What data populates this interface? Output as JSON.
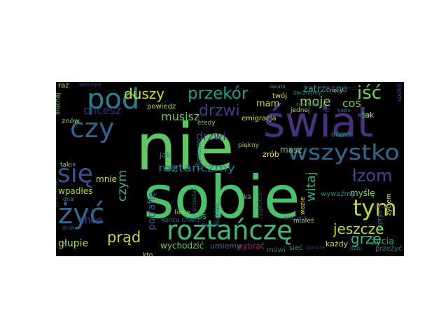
{
  "word_cloud": {
    "background": "#000000",
    "words": [
      {
        "text": "nie",
        "color": "#5ec962"
      },
      {
        "text": "sobie",
        "color": "#4ac16d"
      },
      {
        "text": "świat",
        "color": "#46327e"
      },
      {
        "text": "czy",
        "color": "#33638d"
      },
      {
        "text": "pod",
        "color": "#26828e"
      },
      {
        "text": "się",
        "color": "#3b528b"
      },
      {
        "text": "żyć",
        "color": "#31688e"
      },
      {
        "text": "roztańczę",
        "color": "#3cbc75"
      },
      {
        "text": "wszystko",
        "color": "#31688e"
      },
      {
        "text": "tym",
        "color": "#b5de2b"
      },
      {
        "text": "przekór",
        "color": "#1f9e89"
      },
      {
        "text": "duszy",
        "color": "#c8e020"
      },
      {
        "text": "drzwi",
        "color": "#433e85"
      },
      {
        "text": "moje",
        "color": "#90d743"
      },
      {
        "text": "iść",
        "color": "#7ad151"
      },
      {
        "text": "łzom",
        "color": "#3e4989"
      },
      {
        "text": "jeszcze",
        "color": "#b8de29"
      },
      {
        "text": "prąd",
        "color": "#bddf26"
      },
      {
        "text": "czym",
        "color": "#35b779"
      },
      {
        "text": "roztańczmy",
        "color": "#2a788e"
      },
      {
        "text": "witaj",
        "color": "#2db27d"
      },
      {
        "text": "grze",
        "color": "#35b779"
      },
      {
        "text": "chcesz",
        "color": "#482878"
      },
      {
        "text": "musisz",
        "color": "#5ec962"
      },
      {
        "text": "potrafię",
        "color": "#3b528b"
      },
      {
        "text": "głupie",
        "color": "#a2da37"
      },
      {
        "text": "zatrzasne",
        "color": "#1f9e89"
      },
      {
        "text": "lubię",
        "color": "#440154"
      },
      {
        "text": "coś",
        "color": "#6ece58"
      },
      {
        "text": "mam",
        "color": "#c2df23"
      },
      {
        "text": "chce",
        "color": "#3f4788"
      },
      {
        "text": "wpadłeś",
        "color": "#a5db36"
      },
      {
        "text": "mnie",
        "color": "#d0e11c"
      },
      {
        "text": "wychodzić",
        "color": "#6ece58"
      },
      {
        "text": "umiemy",
        "color": "#2e6e8e"
      },
      {
        "text": "wybrać",
        "color": "#ad1d72"
      },
      {
        "text": "mówi",
        "color": "#2c728e"
      },
      {
        "text": "sieć",
        "color": "#218f8d"
      },
      {
        "text": "każdy",
        "color": "#b2dd2d"
      },
      {
        "text": "życia",
        "color": "#22a884"
      },
      {
        "text": "przeżyć",
        "color": "#25858e"
      },
      {
        "text": "myślę",
        "color": "#8bd646"
      },
      {
        "text": "wywaźmy",
        "color": "#238a8d"
      },
      {
        "text": "zrób",
        "color": "#fde725"
      },
      {
        "text": "masz",
        "color": "#6ccd5a"
      },
      {
        "text": "twój",
        "color": "#d8e219"
      },
      {
        "text": "tak",
        "color": "#75d054"
      },
      {
        "text": "znów",
        "color": "#8fd744"
      },
      {
        "text": "raz",
        "color": "#c0df25"
      },
      {
        "text": "powiedz",
        "color": "#a8db34"
      },
      {
        "text": "los",
        "color": "#2fb47c"
      },
      {
        "text": "jak",
        "color": "#2d708e"
      },
      {
        "text": "sam",
        "color": "#2a778e"
      },
      {
        "text": "taki",
        "color": "#addc30"
      },
      {
        "text": "emigracja",
        "color": "#d2e21b"
      },
      {
        "text": "jednej",
        "color": "#b0dd2f"
      },
      {
        "text": "zacznijmy",
        "color": "#1f948c"
      },
      {
        "text": "obchodzi",
        "color": "#2c738e"
      },
      {
        "text": "kto",
        "color": "#c5e021"
      },
      {
        "text": "koncu chwili",
        "color": "#2e6f8e"
      },
      {
        "text": "rozkład",
        "color": "#2e6e8e"
      },
      {
        "text": "buncie",
        "color": "#472d7b"
      },
      {
        "text": "oka",
        "color": "#4ac16d"
      },
      {
        "text": "rygłujcie",
        "color": "#443a83"
      },
      {
        "text": "kraj jest",
        "color": "#414487"
      },
      {
        "text": "miałeś",
        "color": "#9bd93c"
      },
      {
        "text": "wozie",
        "color": "#e5e419"
      },
      {
        "text": "dzis",
        "color": "#27808e"
      },
      {
        "text": "nocy",
        "color": "#7fd34e"
      },
      {
        "text": "spokój",
        "color": "#3e4a89"
      },
      {
        "text": "kaprys",
        "color": "#26828e"
      },
      {
        "text": "życiem",
        "color": "#fde725"
      },
      {
        "text": "sięga",
        "color": "#482374"
      },
      {
        "text": "dna",
        "color": "#24878e"
      },
      {
        "text": "zostanowe",
        "color": "#25858e"
      },
      {
        "text": "dnia",
        "color": "#3b528b"
      },
      {
        "text": "forsę",
        "color": "#8bd646"
      },
      {
        "text": "słuchaj",
        "color": "#5ec962"
      },
      {
        "text": "wszczęło",
        "color": "#433e85"
      },
      {
        "text": "świata",
        "color": "#1f9a8a"
      },
      {
        "text": "gdzie",
        "color": "#2e6e8e"
      },
      {
        "text": "durne",
        "color": "#1f948c"
      },
      {
        "text": "nic",
        "color": "#3b528b"
      },
      {
        "text": "niecz",
        "color": "#481b6d"
      },
      {
        "text": "etedy",
        "color": "#6ccd5a"
      },
      {
        "text": "piękny",
        "color": "#9fda3a"
      },
      {
        "text": "mgnienie",
        "color": "#29798e"
      },
      {
        "text": "przestać",
        "color": "#3b528b"
      },
      {
        "text": "swoim",
        "color": "#2a778e"
      },
      {
        "text": "drzwi",
        "color": "#443983"
      }
    ]
  }
}
